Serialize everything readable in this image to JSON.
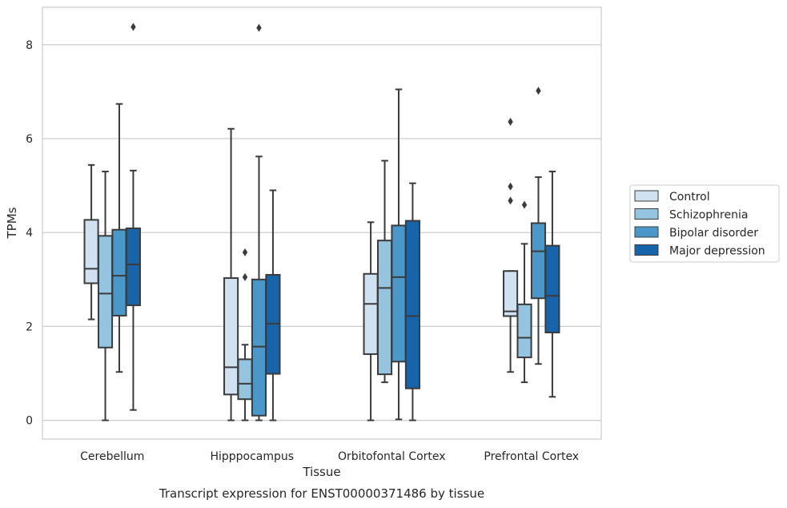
{
  "caption": "Transcript expression for ENST00000371486 by tissue",
  "chart_data": {
    "type": "box",
    "xlabel": "Tissue",
    "ylabel": "TPMs",
    "ylim": [
      -0.4,
      8.8
    ],
    "yticks": [
      0,
      2,
      4,
      6,
      8
    ],
    "grid": "horizontal",
    "legend_position": "right",
    "categories": [
      "Cerebellum",
      "Hipppocampus",
      "Orbitofontal Cortex",
      "Prefrontal Cortex"
    ],
    "series": [
      {
        "name": "Control",
        "color": "#d0e1f2",
        "boxes": [
          {
            "whislo": 2.15,
            "q1": 2.92,
            "med": 3.23,
            "q3": 4.27,
            "whishi": 5.44,
            "fliers": []
          },
          {
            "whislo": 0.0,
            "q1": 0.55,
            "med": 1.13,
            "q3": 3.03,
            "whishi": 6.21,
            "fliers": []
          },
          {
            "whislo": 0.0,
            "q1": 1.41,
            "med": 2.48,
            "q3": 3.12,
            "whishi": 4.22,
            "fliers": []
          },
          {
            "whislo": 1.03,
            "q1": 2.22,
            "med": 2.32,
            "q3": 3.18,
            "whishi": 3.18,
            "fliers": [
              4.68,
              4.98,
              6.36
            ]
          }
        ]
      },
      {
        "name": "Schizophrenia",
        "color": "#94c4df",
        "boxes": [
          {
            "whislo": 0.0,
            "q1": 1.55,
            "med": 2.7,
            "q3": 3.93,
            "whishi": 5.3,
            "fliers": []
          },
          {
            "whislo": 0.0,
            "q1": 0.45,
            "med": 0.78,
            "q3": 1.3,
            "whishi": 1.61,
            "fliers": [
              3.05,
              3.58
            ]
          },
          {
            "whislo": 0.81,
            "q1": 0.98,
            "med": 2.82,
            "q3": 3.83,
            "whishi": 5.53,
            "fliers": []
          },
          {
            "whislo": 0.81,
            "q1": 1.34,
            "med": 1.76,
            "q3": 2.47,
            "whishi": 3.76,
            "fliers": [
              4.59
            ]
          }
        ]
      },
      {
        "name": "Bipolar disorder",
        "color": "#4a98c9",
        "boxes": [
          {
            "whislo": 1.03,
            "q1": 2.23,
            "med": 3.08,
            "q3": 4.06,
            "whishi": 6.74,
            "fliers": []
          },
          {
            "whislo": 0.0,
            "q1": 0.1,
            "med": 1.57,
            "q3": 3.0,
            "whishi": 5.62,
            "fliers": [
              8.36
            ]
          },
          {
            "whislo": 0.02,
            "q1": 1.25,
            "med": 3.05,
            "q3": 4.15,
            "whishi": 7.05,
            "fliers": []
          },
          {
            "whislo": 1.2,
            "q1": 2.6,
            "med": 3.6,
            "q3": 4.2,
            "whishi": 5.18,
            "fliers": [
              7.02
            ]
          }
        ]
      },
      {
        "name": "Major depression",
        "color": "#1764ab",
        "boxes": [
          {
            "whislo": 0.22,
            "q1": 2.45,
            "med": 3.32,
            "q3": 4.09,
            "whishi": 5.32,
            "fliers": [
              8.38
            ]
          },
          {
            "whislo": 0.0,
            "q1": 0.99,
            "med": 2.06,
            "q3": 3.1,
            "whishi": 4.9,
            "fliers": []
          },
          {
            "whislo": 0.0,
            "q1": 0.68,
            "med": 2.22,
            "q3": 4.25,
            "whishi": 5.05,
            "fliers": []
          },
          {
            "whislo": 0.5,
            "q1": 1.87,
            "med": 2.65,
            "q3": 3.72,
            "whishi": 5.3,
            "fliers": []
          }
        ]
      }
    ]
  }
}
